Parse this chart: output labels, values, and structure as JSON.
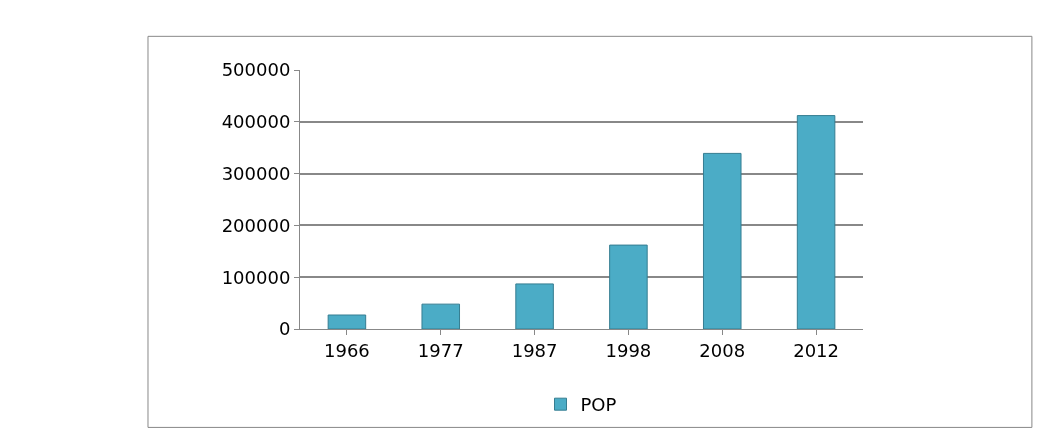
{
  "chart_data": {
    "type": "bar",
    "categories": [
      "1966",
      "1977",
      "1987",
      "1998",
      "2008",
      "2012"
    ],
    "series": [
      {
        "name": "POP",
        "color": "#4bacc6",
        "values": [
          27000,
          48000,
          87000,
          162000,
          339000,
          412000
        ]
      }
    ],
    "ylim": [
      0,
      500000
    ],
    "yticks": [
      0,
      100000,
      200000,
      300000,
      400000,
      500000
    ],
    "grid": "y",
    "legend": "bottom"
  }
}
